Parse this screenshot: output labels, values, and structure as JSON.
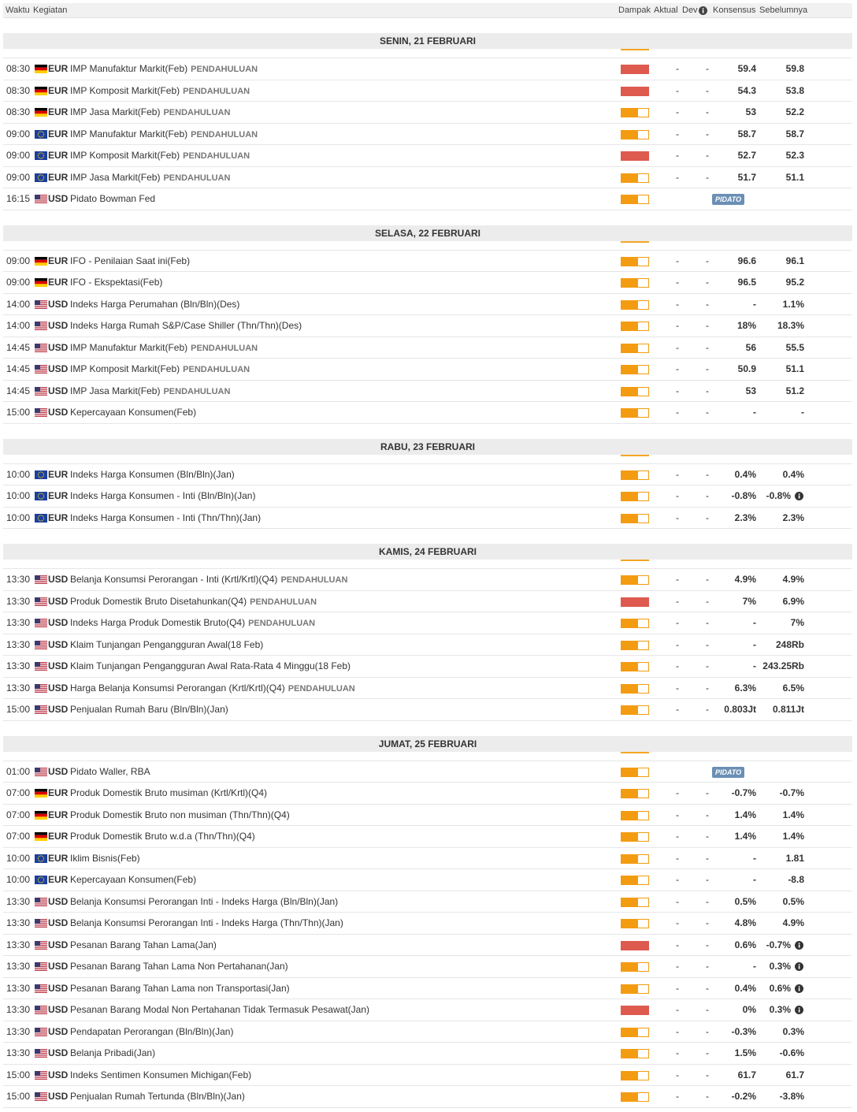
{
  "header": {
    "time": "Waktu",
    "event": "Kegiatan",
    "impact": "Dampak",
    "actual": "Aktual",
    "dev": "Dev",
    "consensus": "Konsensus",
    "previous": "Sebelumnya"
  },
  "days": [
    {
      "title": "SENIN, 21 FEBRUARI",
      "rows": [
        {
          "time": "08:30",
          "flag": "de",
          "currency": "EUR",
          "event": "IMP Manufaktur Markit(Feb)",
          "tag": "PENDAHULUAN",
          "impact": "high",
          "actual": "-",
          "dev": "-",
          "consensus": "59.4",
          "previous": "59.8"
        },
        {
          "time": "08:30",
          "flag": "de",
          "currency": "EUR",
          "event": "IMP Komposit Markit(Feb)",
          "tag": "PENDAHULUAN",
          "impact": "high",
          "actual": "-",
          "dev": "-",
          "consensus": "54.3",
          "previous": "53.8"
        },
        {
          "time": "08:30",
          "flag": "de",
          "currency": "EUR",
          "event": "IMP Jasa Markit(Feb)",
          "tag": "PENDAHULUAN",
          "impact": "medium",
          "actual": "-",
          "dev": "-",
          "consensus": "53",
          "previous": "52.2"
        },
        {
          "time": "09:00",
          "flag": "eu",
          "currency": "EUR",
          "event": "IMP Manufaktur Markit(Feb)",
          "tag": "PENDAHULUAN",
          "impact": "medium",
          "actual": "-",
          "dev": "-",
          "consensus": "58.7",
          "previous": "58.7"
        },
        {
          "time": "09:00",
          "flag": "eu",
          "currency": "EUR",
          "event": "IMP Komposit Markit(Feb)",
          "tag": "PENDAHULUAN",
          "impact": "high",
          "actual": "-",
          "dev": "-",
          "consensus": "52.7",
          "previous": "52.3"
        },
        {
          "time": "09:00",
          "flag": "eu",
          "currency": "EUR",
          "event": "IMP Jasa Markit(Feb)",
          "tag": "PENDAHULUAN",
          "impact": "medium",
          "actual": "-",
          "dev": "-",
          "consensus": "51.7",
          "previous": "51.1"
        },
        {
          "time": "16:15",
          "flag": "us",
          "currency": "USD",
          "event": "Pidato Bowman Fed",
          "impact": "medium",
          "badge": "PIDATO"
        }
      ]
    },
    {
      "title": "SELASA, 22 FEBRUARI",
      "rows": [
        {
          "time": "09:00",
          "flag": "de",
          "currency": "EUR",
          "event": "IFO - Penilaian Saat ini(Feb)",
          "impact": "medium",
          "actual": "-",
          "dev": "-",
          "consensus": "96.6",
          "previous": "96.1"
        },
        {
          "time": "09:00",
          "flag": "de",
          "currency": "EUR",
          "event": "IFO - Ekspektasi(Feb)",
          "impact": "medium",
          "actual": "-",
          "dev": "-",
          "consensus": "96.5",
          "previous": "95.2"
        },
        {
          "time": "14:00",
          "flag": "us",
          "currency": "USD",
          "event": "Indeks Harga Perumahan (Bln/Bln)(Des)",
          "impact": "medium",
          "actual": "-",
          "dev": "-",
          "consensus": "-",
          "previous": "1.1%"
        },
        {
          "time": "14:00",
          "flag": "us",
          "currency": "USD",
          "event": "Indeks Harga Rumah S&P/Case Shiller (Thn/Thn)(Des)",
          "impact": "medium",
          "actual": "-",
          "dev": "-",
          "consensus": "18%",
          "previous": "18.3%"
        },
        {
          "time": "14:45",
          "flag": "us",
          "currency": "USD",
          "event": "IMP Manufaktur Markit(Feb)",
          "tag": "PENDAHULUAN",
          "impact": "medium",
          "actual": "-",
          "dev": "-",
          "consensus": "56",
          "previous": "55.5"
        },
        {
          "time": "14:45",
          "flag": "us",
          "currency": "USD",
          "event": "IMP Komposit Markit(Feb)",
          "tag": "PENDAHULUAN",
          "impact": "medium",
          "actual": "-",
          "dev": "-",
          "consensus": "50.9",
          "previous": "51.1"
        },
        {
          "time": "14:45",
          "flag": "us",
          "currency": "USD",
          "event": "IMP Jasa Markit(Feb)",
          "tag": "PENDAHULUAN",
          "impact": "medium",
          "actual": "-",
          "dev": "-",
          "consensus": "53",
          "previous": "51.2"
        },
        {
          "time": "15:00",
          "flag": "us",
          "currency": "USD",
          "event": "Kepercayaan Konsumen(Feb)",
          "impact": "medium",
          "actual": "-",
          "dev": "-",
          "consensus": "-",
          "previous": "-"
        }
      ]
    },
    {
      "title": "RABU, 23 FEBRUARI",
      "rows": [
        {
          "time": "10:00",
          "flag": "eu",
          "currency": "EUR",
          "event": "Indeks Harga Konsumen (Bln/Bln)(Jan)",
          "impact": "medium",
          "actual": "-",
          "dev": "-",
          "consensus": "0.4%",
          "previous": "0.4%"
        },
        {
          "time": "10:00",
          "flag": "eu",
          "currency": "EUR",
          "event": "Indeks Harga Konsumen - Inti (Bln/Bln)(Jan)",
          "impact": "medium",
          "actual": "-",
          "dev": "-",
          "consensus": "-0.8%",
          "previous": "-0.8%",
          "revised": true
        },
        {
          "time": "10:00",
          "flag": "eu",
          "currency": "EUR",
          "event": "Indeks Harga Konsumen - Inti (Thn/Thn)(Jan)",
          "impact": "medium",
          "actual": "-",
          "dev": "-",
          "consensus": "2.3%",
          "previous": "2.3%"
        }
      ]
    },
    {
      "title": "KAMIS, 24 FEBRUARI",
      "rows": [
        {
          "time": "13:30",
          "flag": "us",
          "currency": "USD",
          "event": "Belanja Konsumsi Perorangan - Inti (Krtl/Krtl)(Q4)",
          "tag": "PENDAHULUAN",
          "impact": "medium",
          "actual": "-",
          "dev": "-",
          "consensus": "4.9%",
          "previous": "4.9%"
        },
        {
          "time": "13:30",
          "flag": "us",
          "currency": "USD",
          "event": "Produk Domestik Bruto Disetahunkan(Q4)",
          "tag": "PENDAHULUAN",
          "impact": "high",
          "actual": "-",
          "dev": "-",
          "consensus": "7%",
          "previous": "6.9%"
        },
        {
          "time": "13:30",
          "flag": "us",
          "currency": "USD",
          "event": "Indeks Harga Produk Domestik Bruto(Q4)",
          "tag": "PENDAHULUAN",
          "impact": "medium",
          "actual": "-",
          "dev": "-",
          "consensus": "-",
          "previous": "7%"
        },
        {
          "time": "13:30",
          "flag": "us",
          "currency": "USD",
          "event": "Klaim Tunjangan Pengangguran Awal(18 Feb)",
          "impact": "medium",
          "actual": "-",
          "dev": "-",
          "consensus": "-",
          "previous": "248Rb"
        },
        {
          "time": "13:30",
          "flag": "us",
          "currency": "USD",
          "event": "Klaim Tunjangan Pengangguran Awal Rata-Rata 4 Minggu(18 Feb)",
          "impact": "medium",
          "actual": "-",
          "dev": "-",
          "consensus": "-",
          "previous": "243.25Rb"
        },
        {
          "time": "13:30",
          "flag": "us",
          "currency": "USD",
          "event": "Harga Belanja Konsumsi Perorangan (Krtl/Krtl)(Q4)",
          "tag": "PENDAHULUAN",
          "impact": "medium",
          "actual": "-",
          "dev": "-",
          "consensus": "6.3%",
          "previous": "6.5%"
        },
        {
          "time": "15:00",
          "flag": "us",
          "currency": "USD",
          "event": "Penjualan Rumah Baru (Bln/Bln)(Jan)",
          "impact": "medium",
          "actual": "-",
          "dev": "-",
          "consensus": "0.803Jt",
          "previous": "0.811Jt"
        }
      ]
    },
    {
      "title": "JUMAT, 25 FEBRUARI",
      "rows": [
        {
          "time": "01:00",
          "flag": "us",
          "currency": "USD",
          "event": "Pidato Waller, RBA",
          "impact": "medium",
          "badge": "PIDATO"
        },
        {
          "time": "07:00",
          "flag": "de",
          "currency": "EUR",
          "event": "Produk Domestik Bruto musiman (Krtl/Krtl)(Q4)",
          "impact": "medium",
          "actual": "-",
          "dev": "-",
          "consensus": "-0.7%",
          "previous": "-0.7%"
        },
        {
          "time": "07:00",
          "flag": "de",
          "currency": "EUR",
          "event": "Produk Domestik Bruto non musiman (Thn/Thn)(Q4)",
          "impact": "medium",
          "actual": "-",
          "dev": "-",
          "consensus": "1.4%",
          "previous": "1.4%"
        },
        {
          "time": "07:00",
          "flag": "de",
          "currency": "EUR",
          "event": "Produk Domestik Bruto w.d.a (Thn/Thn)(Q4)",
          "impact": "medium",
          "actual": "-",
          "dev": "-",
          "consensus": "1.4%",
          "previous": "1.4%"
        },
        {
          "time": "10:00",
          "flag": "eu",
          "currency": "EUR",
          "event": "Iklim Bisnis(Feb)",
          "impact": "medium",
          "actual": "-",
          "dev": "-",
          "consensus": "-",
          "previous": "1.81"
        },
        {
          "time": "10:00",
          "flag": "eu",
          "currency": "EUR",
          "event": "Kepercayaan Konsumen(Feb)",
          "impact": "medium",
          "actual": "-",
          "dev": "-",
          "consensus": "-",
          "previous": "-8.8"
        },
        {
          "time": "13:30",
          "flag": "us",
          "currency": "USD",
          "event": "Belanja Konsumsi Perorangan Inti - Indeks Harga (Bln/Bln)(Jan)",
          "impact": "medium",
          "actual": "-",
          "dev": "-",
          "consensus": "0.5%",
          "previous": "0.5%"
        },
        {
          "time": "13:30",
          "flag": "us",
          "currency": "USD",
          "event": "Belanja Konsumsi Perorangan Inti - Indeks Harga (Thn/Thn)(Jan)",
          "impact": "medium",
          "actual": "-",
          "dev": "-",
          "consensus": "4.8%",
          "previous": "4.9%"
        },
        {
          "time": "13:30",
          "flag": "us",
          "currency": "USD",
          "event": "Pesanan Barang Tahan Lama(Jan)",
          "impact": "high",
          "actual": "-",
          "dev": "-",
          "consensus": "0.6%",
          "previous": "-0.7%",
          "revised": true
        },
        {
          "time": "13:30",
          "flag": "us",
          "currency": "USD",
          "event": "Pesanan Barang Tahan Lama Non Pertahanan(Jan)",
          "impact": "medium",
          "actual": "-",
          "dev": "-",
          "consensus": "-",
          "previous": "0.3%",
          "revised": true
        },
        {
          "time": "13:30",
          "flag": "us",
          "currency": "USD",
          "event": "Pesanan Barang Tahan Lama non Transportasi(Jan)",
          "impact": "medium",
          "actual": "-",
          "dev": "-",
          "consensus": "0.4%",
          "previous": "0.6%",
          "revised": true
        },
        {
          "time": "13:30",
          "flag": "us",
          "currency": "USD",
          "event": "Pesanan Barang Modal Non Pertahanan Tidak Termasuk Pesawat(Jan)",
          "impact": "high",
          "actual": "-",
          "dev": "-",
          "consensus": "0%",
          "previous": "0.3%",
          "revised": true
        },
        {
          "time": "13:30",
          "flag": "us",
          "currency": "USD",
          "event": "Pendapatan Perorangan (Bln/Bln)(Jan)",
          "impact": "medium",
          "actual": "-",
          "dev": "-",
          "consensus": "-0.3%",
          "previous": "0.3%"
        },
        {
          "time": "13:30",
          "flag": "us",
          "currency": "USD",
          "event": "Belanja Pribadi(Jan)",
          "impact": "medium",
          "actual": "-",
          "dev": "-",
          "consensus": "1.5%",
          "previous": "-0.6%"
        },
        {
          "time": "15:00",
          "flag": "us",
          "currency": "USD",
          "event": "Indeks Sentimen Konsumen Michigan(Feb)",
          "impact": "medium",
          "actual": "-",
          "dev": "-",
          "consensus": "61.7",
          "previous": "61.7"
        },
        {
          "time": "15:00",
          "flag": "us",
          "currency": "USD",
          "event": "Penjualan Rumah Tertunda (Bln/Bln)(Jan)",
          "impact": "medium",
          "actual": "-",
          "dev": "-",
          "consensus": "-0.2%",
          "previous": "-3.8%"
        }
      ]
    }
  ]
}
